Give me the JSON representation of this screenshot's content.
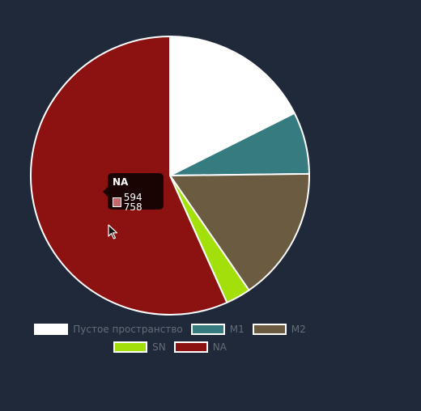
{
  "chart_data": {
    "type": "pie",
    "slices": [
      {
        "label": "Пустое пространство",
        "value": 17.6,
        "color": "#ffffff"
      },
      {
        "label": "M1",
        "value": 7.2,
        "color": "#357b80"
      },
      {
        "label": "M2",
        "value": 15.6,
        "color": "#6b5c41"
      },
      {
        "label": "SN",
        "value": 2.9,
        "color": "#a3e00b"
      },
      {
        "label": "NA",
        "value": 56.7,
        "color": "#8c1111"
      }
    ],
    "start_angle_deg": 0,
    "legend": "bottom",
    "slice_border_color": "#ffffff"
  },
  "tooltip": {
    "title": "NA",
    "value": "594 758",
    "swatch_color": "#c06a70"
  }
}
